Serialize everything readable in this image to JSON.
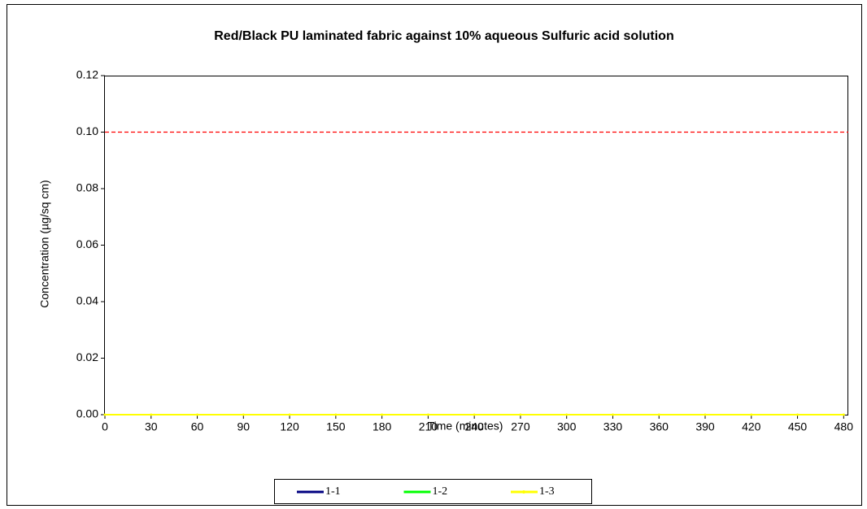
{
  "chart_data": {
    "type": "line",
    "title": "Red/Black PU laminated fabric against 10% aqueous Sulfuric acid solution",
    "x_label": "Time (minutes)",
    "y_label": "Concentration (µg/sq cm)",
    "x": [
      0,
      30,
      60,
      90,
      120,
      150,
      180,
      210,
      240,
      270,
      300,
      330,
      360,
      390,
      420,
      450,
      480
    ],
    "series": [
      {
        "name": "1-1",
        "color": "#000080",
        "values": [
          0,
          0,
          0,
          0,
          0,
          0,
          0,
          0,
          0,
          0,
          0,
          0,
          0,
          0,
          0,
          0,
          0
        ]
      },
      {
        "name": "1-2",
        "color": "#00ff00",
        "values": [
          0,
          0,
          0,
          0,
          0,
          0,
          0,
          0,
          0,
          0,
          0,
          0,
          0,
          0,
          0,
          0,
          0
        ]
      },
      {
        "name": "1-3",
        "color": "#ffff00",
        "marker": true,
        "values": [
          0,
          0,
          0,
          0,
          0,
          0,
          0,
          0,
          0,
          0,
          0,
          0,
          0,
          0,
          0,
          0,
          0
        ]
      }
    ],
    "reference_line": {
      "value": 0.1,
      "color": "#ff0000"
    },
    "xlim": [
      0,
      483
    ],
    "ylim": [
      0,
      0.12
    ],
    "xticks": [
      0,
      30,
      60,
      90,
      120,
      150,
      180,
      210,
      240,
      270,
      300,
      330,
      360,
      390,
      420,
      450,
      480
    ],
    "yticks": [
      {
        "value": 0,
        "label": "0.00"
      },
      {
        "value": 0.02,
        "label": "0.02"
      },
      {
        "value": 0.04,
        "label": "0.04"
      },
      {
        "value": 0.06,
        "label": "0.06"
      },
      {
        "value": 0.08,
        "label": "0.08"
      },
      {
        "value": 0.1,
        "label": "0.10"
      },
      {
        "value": 0.12,
        "label": "0.12"
      }
    ],
    "legend": "bottom"
  }
}
